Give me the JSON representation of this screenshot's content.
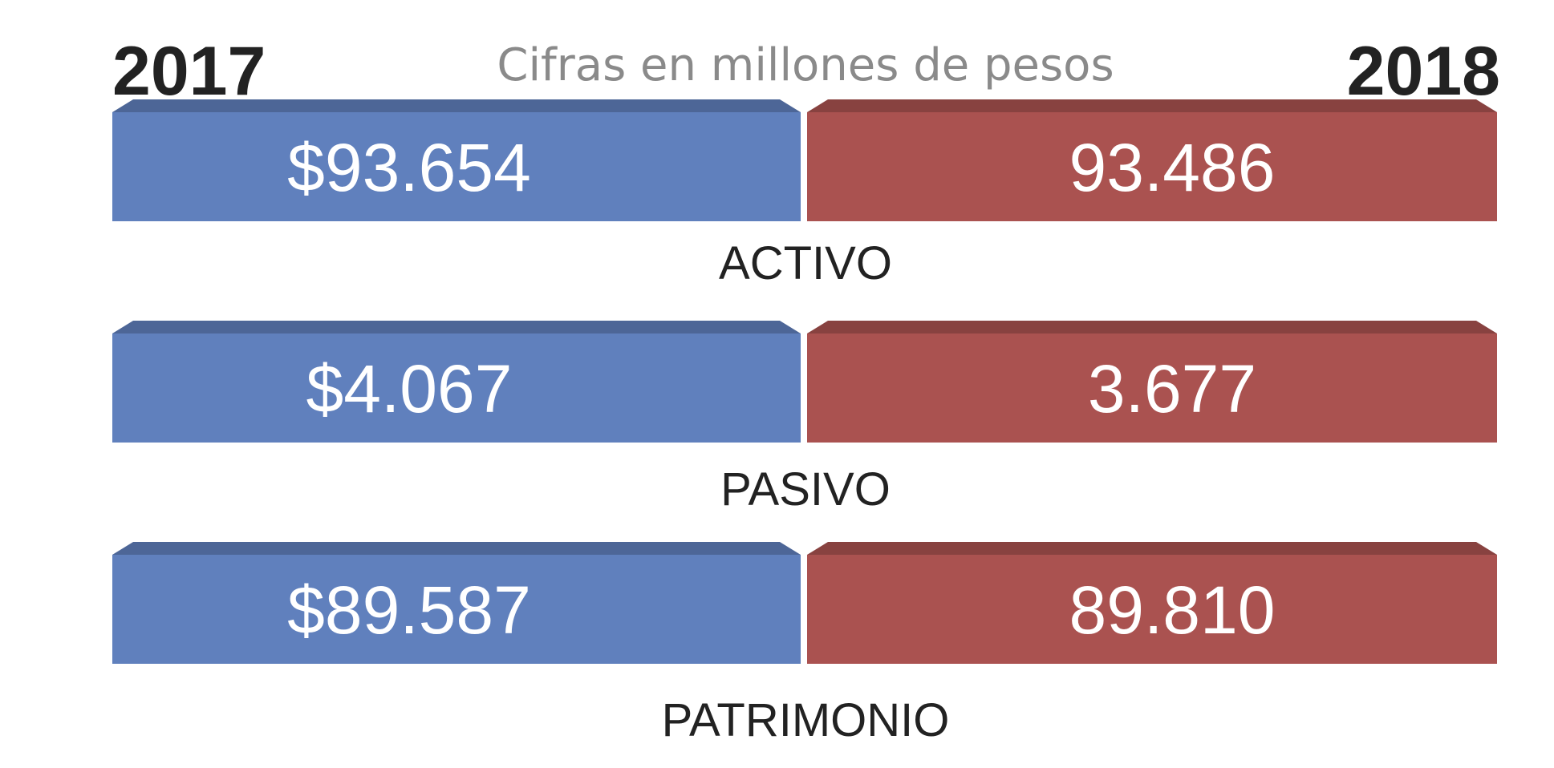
{
  "chart_data": {
    "type": "table",
    "subtitle": "Cifras en millones de pesos",
    "columns": [
      "2017",
      "2018"
    ],
    "categories": [
      "ACTIVO",
      "PASIVO",
      "PATRIMONIO"
    ],
    "series": [
      {
        "name": "2017",
        "values": [
          93654,
          4067,
          89587
        ],
        "labels": [
          "$93.654",
          "$4.067",
          "$89.587"
        ],
        "color": "#6080bd"
      },
      {
        "name": "2018",
        "values": [
          93486,
          3677,
          89810
        ],
        "labels": [
          "93.486",
          "3.677",
          "89.810"
        ],
        "color": "#aa5250"
      }
    ]
  }
}
